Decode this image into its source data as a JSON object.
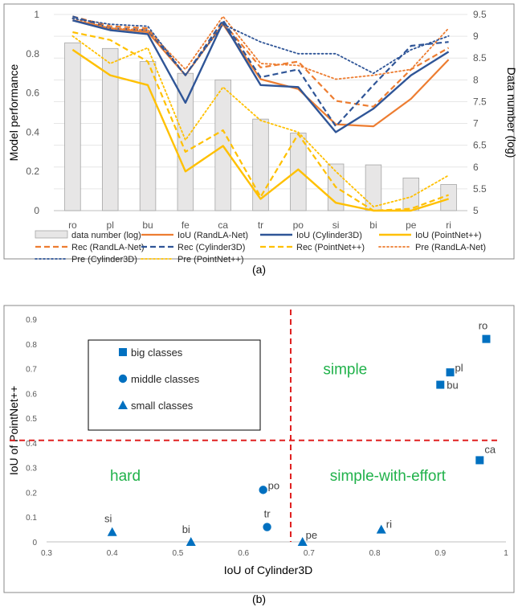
{
  "panel_a_label": "(a)",
  "panel_b_label": "(b)",
  "chart_data": [
    {
      "type": "bar+line",
      "ylabel": "Model performance",
      "y2label": "Data number (log)",
      "ylim": [
        0,
        1
      ],
      "y2lim": [
        5,
        9.5
      ],
      "yticks": [
        "0",
        "0.2",
        "0.4",
        "0.6",
        "0.8",
        "1"
      ],
      "y2ticks": [
        "5",
        "5.5",
        "6",
        "6.5",
        "7",
        "7.5",
        "8",
        "8.5",
        "9",
        "9.5"
      ],
      "categories": [
        "ro",
        "pl",
        "bu",
        "fe",
        "ca",
        "tr",
        "po",
        "si",
        "bi",
        "pe",
        "ri"
      ],
      "bars": {
        "name": "data number (log)",
        "axis": "right",
        "color": "#e7e6e6",
        "values": [
          8.85,
          8.72,
          8.42,
          8.15,
          8.0,
          7.1,
          6.78,
          6.07,
          6.05,
          5.75,
          5.6
        ]
      },
      "series": [
        {
          "name": "IoU (RandLA-Net)",
          "color": "#ed7d31",
          "style": "solid",
          "width": 2.2,
          "values": [
            0.97,
            0.93,
            0.91,
            0.69,
            0.95,
            0.67,
            0.62,
            0.44,
            0.43,
            0.57,
            0.77
          ]
        },
        {
          "name": "IoU (Cylinder3D)",
          "color": "#2f5597",
          "style": "solid",
          "width": 2.4,
          "values": [
            0.97,
            0.92,
            0.9,
            0.55,
            0.96,
            0.64,
            0.63,
            0.4,
            0.52,
            0.69,
            0.81
          ]
        },
        {
          "name": "IoU (PointNet++)",
          "color": "#ffc000",
          "style": "solid",
          "width": 2.4,
          "values": [
            0.82,
            0.69,
            0.64,
            0.2,
            0.33,
            0.06,
            0.21,
            0.04,
            0.0,
            0.0,
            0.06
          ]
        },
        {
          "name": "Rec (RandLA-Net)",
          "color": "#ed7d31",
          "style": "dash",
          "width": 2.2,
          "values": [
            0.99,
            0.94,
            0.93,
            0.69,
            0.96,
            0.73,
            0.76,
            0.56,
            0.53,
            0.72,
            0.83
          ]
        },
        {
          "name": "Rec (Cylinder3D)",
          "color": "#2f5597",
          "style": "dash",
          "width": 2.2,
          "values": [
            0.99,
            0.93,
            0.92,
            0.69,
            0.97,
            0.68,
            0.72,
            0.43,
            0.64,
            0.84,
            0.86
          ]
        },
        {
          "name": "Rec (PointNet++)",
          "color": "#ffc000",
          "style": "dash",
          "width": 2.2,
          "values": [
            0.91,
            0.87,
            0.76,
            0.3,
            0.41,
            0.07,
            0.39,
            0.12,
            0.0,
            0.01,
            0.08
          ]
        },
        {
          "name": "Pre (RandLA-Net)",
          "color": "#ed7d31",
          "style": "dot",
          "width": 1.8,
          "values": [
            0.98,
            0.93,
            0.92,
            0.72,
            0.99,
            0.75,
            0.74,
            0.67,
            0.69,
            0.72,
            0.93
          ]
        },
        {
          "name": "Pre (Cylinder3D)",
          "color": "#2f5597",
          "style": "dot",
          "width": 1.8,
          "values": [
            0.98,
            0.95,
            0.94,
            0.69,
            0.95,
            0.86,
            0.8,
            0.8,
            0.7,
            0.82,
            0.89
          ]
        },
        {
          "name": "Pre (PointNet++)",
          "color": "#ffc000",
          "style": "dot",
          "width": 1.8,
          "values": [
            0.89,
            0.75,
            0.83,
            0.36,
            0.63,
            0.46,
            0.4,
            0.2,
            0.02,
            0.07,
            0.18
          ]
        }
      ],
      "legend": "bottom"
    },
    {
      "type": "scatter",
      "xlabel": "IoU of Cylinder3D",
      "ylabel": "IoU of PointNet++",
      "xlim": [
        0.3,
        1
      ],
      "ylim": [
        0,
        0.9
      ],
      "xticks": [
        "0.3",
        "0.4",
        "0.5",
        "0.6",
        "0.7",
        "0.8",
        "0.9",
        "1"
      ],
      "yticks": [
        "0",
        "0.1",
        "0.2",
        "0.3",
        "0.4",
        "0.5",
        "0.6",
        "0.7",
        "0.8",
        "0.9"
      ],
      "color": "#0070c0",
      "thresholds": {
        "x": 0.672,
        "y": 0.41,
        "color": "#e02020"
      },
      "regions": [
        {
          "label": "simple",
          "x": 0.755,
          "y": 0.7
        },
        {
          "label": "hard",
          "x": 0.42,
          "y": 0.27
        },
        {
          "label": "simple-with-effort",
          "x": 0.82,
          "y": 0.27
        }
      ],
      "legend": {
        "position": "top-left",
        "items": [
          {
            "label": "big classes",
            "marker": "square"
          },
          {
            "label": "middle classes",
            "marker": "circle"
          },
          {
            "label": "small classes",
            "marker": "triangle"
          }
        ]
      },
      "points": [
        {
          "label": "ro",
          "x": 0.97,
          "y": 0.82,
          "marker": "square"
        },
        {
          "label": "pl",
          "x": 0.915,
          "y": 0.685,
          "marker": "square"
        },
        {
          "label": "bu",
          "x": 0.9,
          "y": 0.635,
          "marker": "square"
        },
        {
          "label": "ca",
          "x": 0.96,
          "y": 0.33,
          "marker": "square"
        },
        {
          "label": "po",
          "x": 0.63,
          "y": 0.21,
          "marker": "circle"
        },
        {
          "label": "tr",
          "x": 0.636,
          "y": 0.06,
          "marker": "circle"
        },
        {
          "label": "si",
          "x": 0.4,
          "y": 0.04,
          "marker": "triangle"
        },
        {
          "label": "bi",
          "x": 0.52,
          "y": 0.0,
          "marker": "triangle"
        },
        {
          "label": "pe",
          "x": 0.69,
          "y": 0.0,
          "marker": "triangle"
        },
        {
          "label": "ri",
          "x": 0.81,
          "y": 0.05,
          "marker": "triangle"
        }
      ]
    }
  ]
}
